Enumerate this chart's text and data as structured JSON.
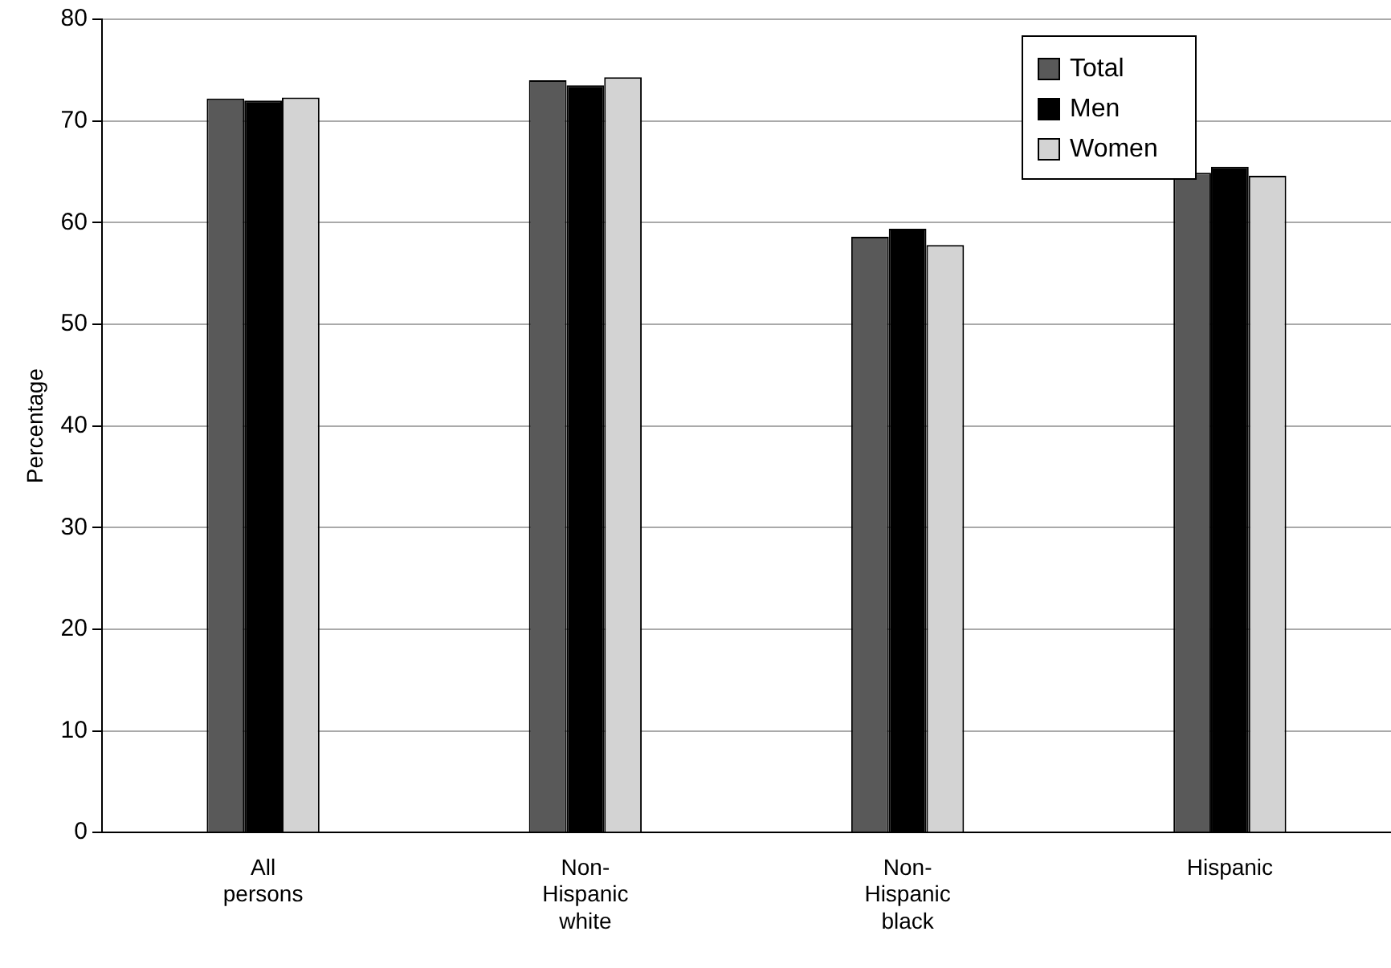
{
  "chart_data": {
    "type": "bar",
    "ylabel": "Percentage",
    "categories": [
      "All persons",
      "Non-Hispanic white",
      "Non-Hispanic black",
      "Hispanic"
    ],
    "series": [
      {
        "name": "Total",
        "color": "#595959",
        "values": [
          72.2,
          74.0,
          58.6,
          64.9
        ]
      },
      {
        "name": "Men",
        "color": "#000000",
        "values": [
          72.0,
          73.5,
          59.4,
          65.5
        ]
      },
      {
        "name": "Women",
        "color": "#d3d3d3",
        "values": [
          72.3,
          74.3,
          57.8,
          64.6
        ]
      }
    ],
    "ylim": [
      0,
      80
    ],
    "yticks": [
      0,
      10,
      20,
      30,
      40,
      50,
      60,
      70,
      80
    ],
    "grid": "y",
    "legend": "top right"
  }
}
